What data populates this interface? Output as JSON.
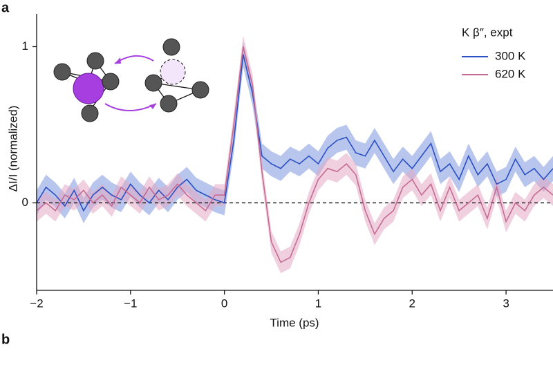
{
  "panel_a": "a",
  "panel_b": "b",
  "chart_data": {
    "type": "line",
    "x_label": "Time (ps)",
    "y_label": "ΔI/I (normalized)",
    "legend_title": "K β″, expt",
    "x": [
      -2.0,
      -1.9,
      -1.8,
      -1.7,
      -1.6,
      -1.5,
      -1.4,
      -1.3,
      -1.2,
      -1.1,
      -1.0,
      -0.9,
      -0.8,
      -0.7,
      -0.6,
      -0.5,
      -0.4,
      -0.3,
      -0.2,
      -0.1,
      0.0,
      0.1,
      0.2,
      0.3,
      0.4,
      0.5,
      0.6,
      0.7,
      0.8,
      0.9,
      1.0,
      1.1,
      1.2,
      1.3,
      1.4,
      1.5,
      1.6,
      1.7,
      1.8,
      1.9,
      2.0,
      2.1,
      2.2,
      2.3,
      2.4,
      2.5,
      2.6,
      2.7,
      2.8,
      2.9,
      3.0,
      3.1,
      3.2,
      3.3,
      3.4,
      3.5
    ],
    "series": [
      {
        "name": "300 K",
        "color": "#2a4fc2",
        "band_color": "#7d98e0",
        "error": 0.08,
        "values": [
          0.0,
          0.1,
          0.05,
          -0.02,
          0.08,
          -0.05,
          0.05,
          0.1,
          0.05,
          0.02,
          0.12,
          0.05,
          0.0,
          0.08,
          0.02,
          0.1,
          0.15,
          0.08,
          0.05,
          0.02,
          0.0,
          0.4,
          0.95,
          0.7,
          0.3,
          0.25,
          0.22,
          0.28,
          0.25,
          0.3,
          0.25,
          0.35,
          0.4,
          0.42,
          0.32,
          0.3,
          0.4,
          0.3,
          0.2,
          0.28,
          0.22,
          0.3,
          0.38,
          0.2,
          0.25,
          0.15,
          0.3,
          0.18,
          0.25,
          0.12,
          0.15,
          0.28,
          0.18,
          0.22,
          0.15,
          0.22
        ]
      },
      {
        "name": "620 K",
        "color": "#c56a94",
        "band_color": "#e3aac3",
        "error": 0.07,
        "values": [
          -0.05,
          0.0,
          -0.05,
          0.05,
          0.02,
          0.08,
          0.0,
          0.05,
          -0.02,
          0.1,
          0.05,
          0.0,
          0.1,
          0.02,
          0.05,
          0.12,
          0.05,
          0.0,
          -0.05,
          0.05,
          0.05,
          0.5,
          1.0,
          0.75,
          0.2,
          -0.25,
          -0.38,
          -0.35,
          -0.2,
          0.0,
          0.15,
          0.22,
          0.2,
          0.25,
          0.18,
          -0.05,
          -0.2,
          -0.1,
          -0.05,
          0.1,
          0.15,
          0.05,
          0.12,
          -0.05,
          0.1,
          -0.05,
          0.0,
          0.05,
          -0.1,
          0.1,
          -0.12,
          0.0,
          -0.05,
          0.05,
          0.1,
          0.05
        ]
      }
    ],
    "reference_line": 0,
    "xlim": [
      -2,
      3.5
    ],
    "xticks": [
      {
        "value": -2,
        "label": "−2"
      },
      {
        "value": -1,
        "label": "−1"
      },
      0,
      1,
      2,
      3
    ],
    "ylim": [
      -0.56,
      1.21
    ],
    "yticks": [
      0,
      1
    ]
  }
}
